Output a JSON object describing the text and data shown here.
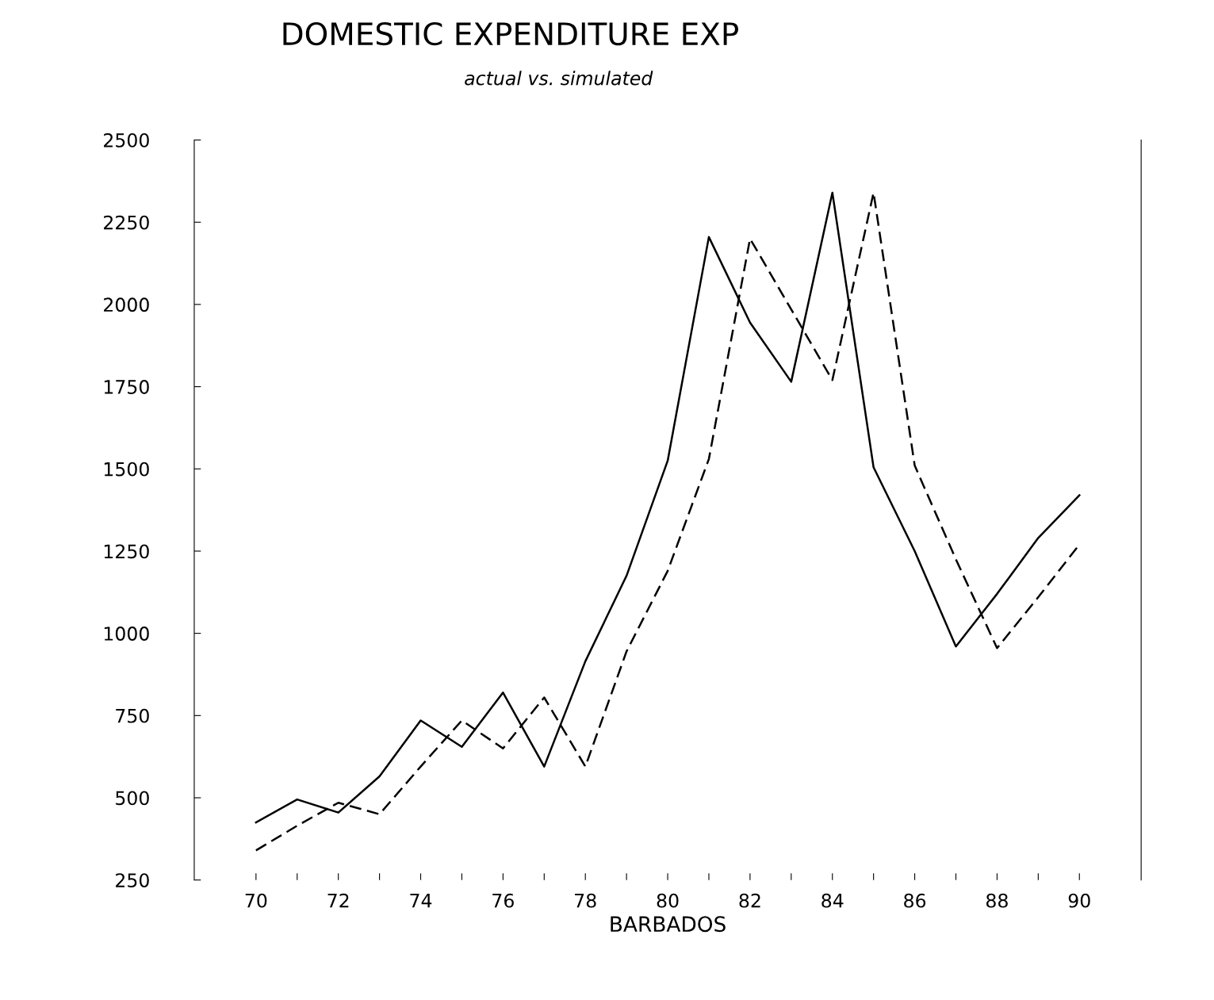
{
  "chart_data": {
    "type": "line",
    "title": "DOMESTIC EXPENDITURE EXP",
    "subtitle": "actual vs. simulated",
    "xlabel": "BARBADOS",
    "x": [
      70,
      71,
      72,
      73,
      74,
      75,
      76,
      77,
      78,
      79,
      80,
      81,
      82,
      83,
      84,
      85,
      86,
      87,
      88,
      89,
      90
    ],
    "series": [
      {
        "color": "#000000",
        "line_style": "solid",
        "values": [
          425,
          495,
          455,
          565,
          735,
          655,
          820,
          595,
          915,
          1175,
          1525,
          2205,
          1945,
          1765,
          2340,
          1505,
          1250,
          960,
          1120,
          1290,
          1420
        ]
      },
      {
        "color": "#000000",
        "line_style": "dashed",
        "values": [
          340,
          415,
          485,
          450,
          595,
          735,
          650,
          805,
          595,
          945,
          1190,
          1530,
          2200,
          1985,
          1770,
          2340,
          1510,
          1225,
          955,
          1110,
          1270
        ]
      }
    ],
    "xlim": [
      68.5,
      91.5
    ],
    "ylim": [
      250,
      2500
    ],
    "xticks": [
      70,
      {
        "value": 71,
        "label": null
      },
      72,
      {
        "value": 73,
        "label": null
      },
      74,
      {
        "value": 75,
        "label": null
      },
      76,
      {
        "value": 77,
        "label": null
      },
      78,
      {
        "value": 79,
        "label": null
      },
      80,
      {
        "value": 81,
        "label": null
      },
      82,
      {
        "value": 83,
        "label": null
      },
      84,
      {
        "value": 85,
        "label": null
      },
      86,
      {
        "value": 87,
        "label": null
      },
      88,
      {
        "value": 89,
        "label": null
      },
      90
    ],
    "yticks": [
      250,
      500,
      750,
      1000,
      1250,
      1500,
      1750,
      2000,
      2250,
      2500
    ],
    "grid": false,
    "legend": false,
    "marker": "none"
  }
}
